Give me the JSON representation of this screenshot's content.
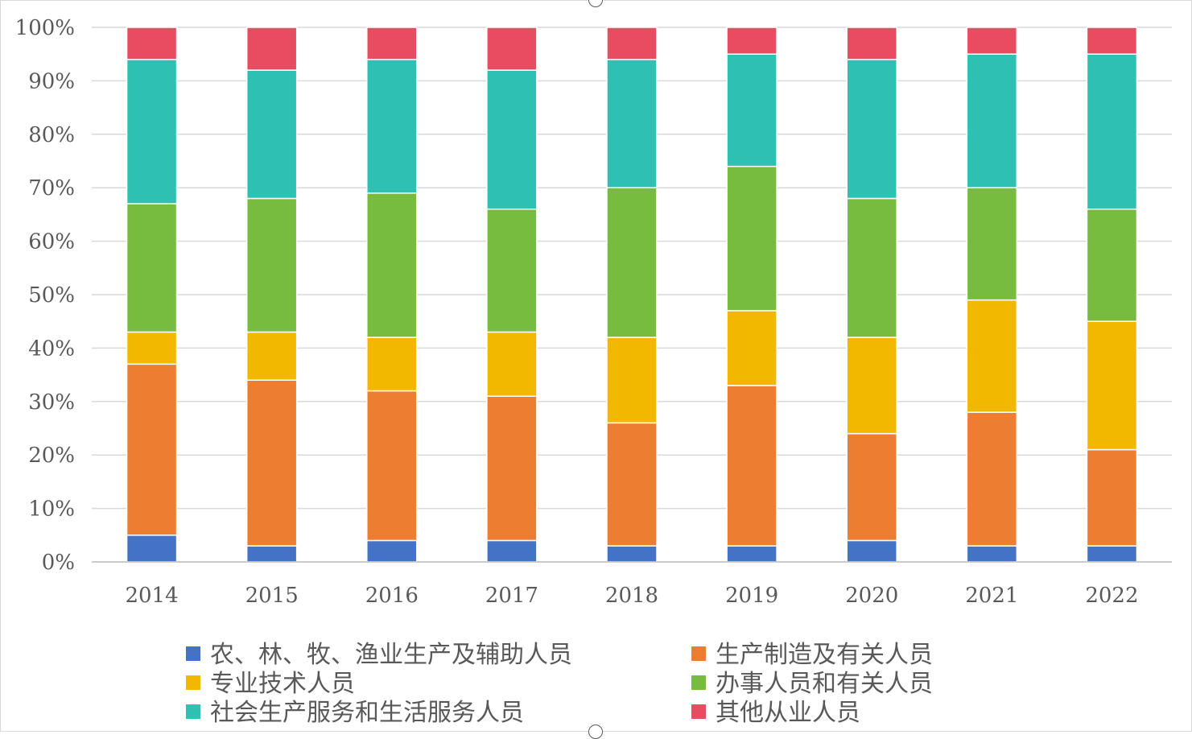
{
  "chart_data": {
    "type": "bar",
    "stacked": true,
    "percent": true,
    "categories": [
      "2014",
      "2015",
      "2016",
      "2017",
      "2018",
      "2019",
      "2020",
      "2021",
      "2022"
    ],
    "ylim": [
      0,
      100
    ],
    "yticks": [
      "0%",
      "10%",
      "20%",
      "30%",
      "40%",
      "50%",
      "60%",
      "70%",
      "80%",
      "90%",
      "100%"
    ],
    "grid": true,
    "legend_position": "bottom",
    "series": [
      {
        "name": "农、林、牧、渔业生产及辅助人员",
        "color": "#4472C4",
        "values": [
          5,
          3,
          4,
          4,
          3,
          3,
          4,
          3,
          3
        ]
      },
      {
        "name": "生产制造及有关人员",
        "color": "#ED7D31",
        "values": [
          32,
          31,
          28,
          27,
          23,
          30,
          20,
          25,
          18
        ]
      },
      {
        "name": "专业技术人员",
        "color": "#F2B800",
        "values": [
          6,
          9,
          10,
          12,
          16,
          14,
          18,
          21,
          24
        ]
      },
      {
        "name": "办事人员和有关人员",
        "color": "#77BC3E",
        "values": [
          24,
          25,
          27,
          23,
          28,
          27,
          26,
          21,
          21
        ]
      },
      {
        "name": "社会生产服务和生活服务人员",
        "color": "#2EC1B3",
        "values": [
          27,
          24,
          25,
          26,
          24,
          21,
          26,
          25,
          29
        ]
      },
      {
        "name": "其他从业人员",
        "color": "#E84C60",
        "values": [
          6,
          8,
          6,
          8,
          6,
          5,
          6,
          5,
          5
        ]
      }
    ]
  }
}
